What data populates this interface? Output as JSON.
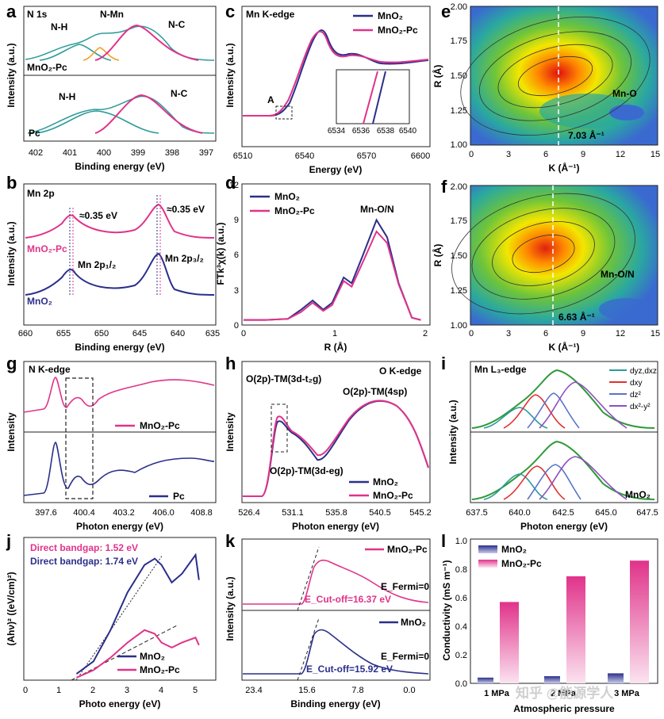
{
  "colors": {
    "navy": "#2b2f8a",
    "pink": "#e0338a",
    "teal": "#2e9a9a",
    "orange": "#f0a020",
    "green": "#2e9a3a",
    "purple": "#8e4fc0",
    "red": "#e03030",
    "blue": "#5a74c8"
  },
  "panels": {
    "a": {
      "letter": "a",
      "title": "N 1s",
      "xlabel": "Binding energy (eV)",
      "ylabel": "Intensity (a.u.)",
      "xticks": [
        "402",
        "401",
        "400",
        "399",
        "398",
        "397"
      ],
      "top_label": "MnO₂-Pc",
      "bot_label": "Pc",
      "labels_top": [
        "N-H",
        "N-Mn",
        "N-C"
      ],
      "labels_bot": [
        "N-H",
        "N-C"
      ]
    },
    "b": {
      "letter": "b",
      "title": "Mn 2p",
      "xlabel": "Binding energy (eV)",
      "ylabel": "Intensity (a.u.)",
      "xticks": [
        "660",
        "655",
        "650",
        "645",
        "640",
        "635"
      ],
      "shift1": "≈0.35 eV",
      "shift2": "≈0.35 eV",
      "pk1": "Mn 2p₁/₂",
      "pk2": "Mn 2p₃/₂",
      "top_label": "MnO₂-Pc",
      "bot_label": "MnO₂"
    },
    "c": {
      "letter": "c",
      "title": "Mn K-edge",
      "xlabel": "Energy (eV)",
      "ylabel": "Intensity (a.u.)",
      "xticks": [
        "6510",
        "6540",
        "6570",
        "6600"
      ],
      "marker": "A",
      "inset_xticks": [
        "6534",
        "6536",
        "6538",
        "6540"
      ],
      "legend": [
        "MnO₂",
        "MnO₂-Pc"
      ]
    },
    "d": {
      "letter": "d",
      "xlabel": "R (Å)",
      "ylabel": "FTk³χ(k) (a.u.)",
      "xticks": [
        "0",
        "1",
        "2"
      ],
      "yticks": [
        "0",
        "3",
        "6",
        "9",
        "12"
      ],
      "legend": [
        "MnO₂",
        "MnO₂-Pc"
      ],
      "peak": "Mn-O/N"
    },
    "e": {
      "letter": "e",
      "xlabel": "K (Å⁻¹)",
      "ylabel": "R (Å)",
      "xticks": [
        "0",
        "3",
        "6",
        "9",
        "12",
        "15"
      ],
      "yticks": [
        "1.00",
        "1.25",
        "1.50",
        "1.75",
        "2.00"
      ],
      "label": "Mn-O",
      "kmax": "7.03 Å⁻¹"
    },
    "f": {
      "letter": "f",
      "xlabel": "K (Å⁻¹)",
      "ylabel": "R (Å)",
      "xticks": [
        "0",
        "3",
        "6",
        "9",
        "12",
        "15"
      ],
      "yticks": [
        "1.00",
        "1.25",
        "1.50",
        "1.75",
        "2.00"
      ],
      "label": "Mn-O/N",
      "kmax": "6.63 Å⁻¹"
    },
    "g": {
      "letter": "g",
      "title": "N K-edge",
      "xlabel": "Photon energy (eV)",
      "ylabel": "Intensity",
      "xticks": [
        "397.6",
        "400.4",
        "403.2",
        "406.0",
        "408.8"
      ],
      "top_label": "MnO₂-Pc",
      "bot_label": "Pc"
    },
    "h": {
      "letter": "h",
      "title": "O K-edge",
      "xlabel": "Photon energy (eV)",
      "ylabel": "Intensity",
      "xticks": [
        "526.4",
        "531.1",
        "535.8",
        "540.5",
        "545.2"
      ],
      "lab1": "O(2p)-TM(3d-t₂g)",
      "lab2": "O(2p)-TM(4sp)",
      "lab3": "O(2p)-TM(3d-eg)",
      "legend": [
        "MnO₂",
        "MnO₂-Pc"
      ]
    },
    "i": {
      "letter": "i",
      "title": "Mn L₃-edge",
      "xlabel": "Photon energy (eV)",
      "ylabel": "Intensity (a.u.)",
      "xticks": [
        "637.5",
        "640.0",
        "642.5",
        "645.0",
        "647.5"
      ],
      "legend": [
        "dyz,dxz",
        "dxy",
        "dz²",
        "dx²-y²"
      ],
      "bot_label": "MnO₂"
    },
    "j": {
      "letter": "j",
      "xlabel": "Photo energy (eV)",
      "ylabel": "(Ahν)² ((eV/cm)²)",
      "xticks": [
        "0",
        "1",
        "2",
        "3",
        "4",
        "5"
      ],
      "gap1": "Direct bandgap: 1.52 eV",
      "gap2": "Direct bandgap: 1.74 eV",
      "legend": [
        "MnO₂",
        "MnO₂-Pc"
      ]
    },
    "k": {
      "letter": "k",
      "xlabel": "Binding energy (eV)",
      "ylabel": "Intensity (a.u.)",
      "xticks": [
        "23.4",
        "15.6",
        "7.8",
        "0.0"
      ],
      "top_label": "MnO₂-Pc",
      "bot_label": "MnO₂",
      "cut_top": "E_Cut-off=16.37 eV",
      "cut_bot": "E_Cut-off=15.92 eV",
      "fermi": "E_Fermi=0"
    },
    "l": {
      "letter": "l",
      "xlabel": "Atmospheric pressure",
      "ylabel": "Conductivity (mS m⁻¹)",
      "yticks": [
        "0.0",
        "0.2",
        "0.4",
        "0.6",
        "0.8",
        "1.0"
      ],
      "legend": [
        "MnO₂",
        "MnO₂-Pc"
      ]
    }
  },
  "watermark": "知乎 @能源学人",
  "chart_data": [
    {
      "panel": "l",
      "type": "bar",
      "title": "",
      "xlabel": "Atmospheric pressure",
      "ylabel": "Conductivity (mS m⁻¹)",
      "ylim": [
        0,
        1.0
      ],
      "categories": [
        "1 MPa",
        "2 MPa",
        "3 MPa"
      ],
      "series": [
        {
          "name": "MnO₂",
          "values": [
            0.04,
            0.05,
            0.07
          ]
        },
        {
          "name": "MnO₂-Pc",
          "values": [
            0.57,
            0.75,
            0.86
          ]
        }
      ]
    },
    {
      "panel": "j",
      "type": "line",
      "xlabel": "Photo energy (eV)",
      "ylabel": "(Ahν)² ((eV/cm)²)",
      "xlim": [
        0,
        5.5
      ],
      "annotations": [
        "Direct bandgap: 1.52 eV",
        "Direct bandgap: 1.74 eV"
      ],
      "series": [
        {
          "name": "MnO₂",
          "x": [
            1.5,
            2.0,
            2.5,
            3.0,
            3.5,
            3.8,
            4.0,
            4.3,
            4.6,
            5.0,
            5.1
          ],
          "y": [
            0.05,
            0.15,
            0.4,
            0.7,
            0.92,
            0.97,
            0.92,
            0.78,
            0.85,
            1.0,
            0.8
          ]
        },
        {
          "name": "MnO₂-Pc",
          "x": [
            1.5,
            2.0,
            2.5,
            3.0,
            3.5,
            3.8,
            4.0,
            4.3,
            4.6,
            5.0,
            5.1
          ],
          "y": [
            0.02,
            0.08,
            0.18,
            0.3,
            0.4,
            0.37,
            0.3,
            0.26,
            0.3,
            0.34,
            0.28
          ]
        }
      ]
    },
    {
      "panel": "d",
      "type": "line",
      "xlabel": "R (Å)",
      "ylabel": "FTk³χ(k) (a.u.)",
      "xlim": [
        0,
        2.05
      ],
      "ylim": [
        0,
        12
      ],
      "series": [
        {
          "name": "MnO₂",
          "x": [
            0,
            0.25,
            0.5,
            0.65,
            0.78,
            0.9,
            1.0,
            1.13,
            1.22,
            1.35,
            1.5,
            1.62,
            1.75,
            1.9,
            2.0
          ],
          "y": [
            0.3,
            0.3,
            0.4,
            1.2,
            2.0,
            1.2,
            1.8,
            4.0,
            3.5,
            6.0,
            9.0,
            7.5,
            3.5,
            0.5,
            0.3
          ]
        },
        {
          "name": "MnO₂-Pc",
          "x": [
            0,
            0.25,
            0.5,
            0.65,
            0.78,
            0.9,
            1.0,
            1.13,
            1.22,
            1.35,
            1.5,
            1.62,
            1.75,
            1.9,
            2.0
          ],
          "y": [
            0.3,
            0.3,
            0.4,
            1.0,
            1.8,
            1.1,
            1.6,
            3.7,
            3.2,
            5.4,
            8.0,
            7.0,
            3.4,
            0.5,
            0.3
          ]
        }
      ]
    }
  ]
}
